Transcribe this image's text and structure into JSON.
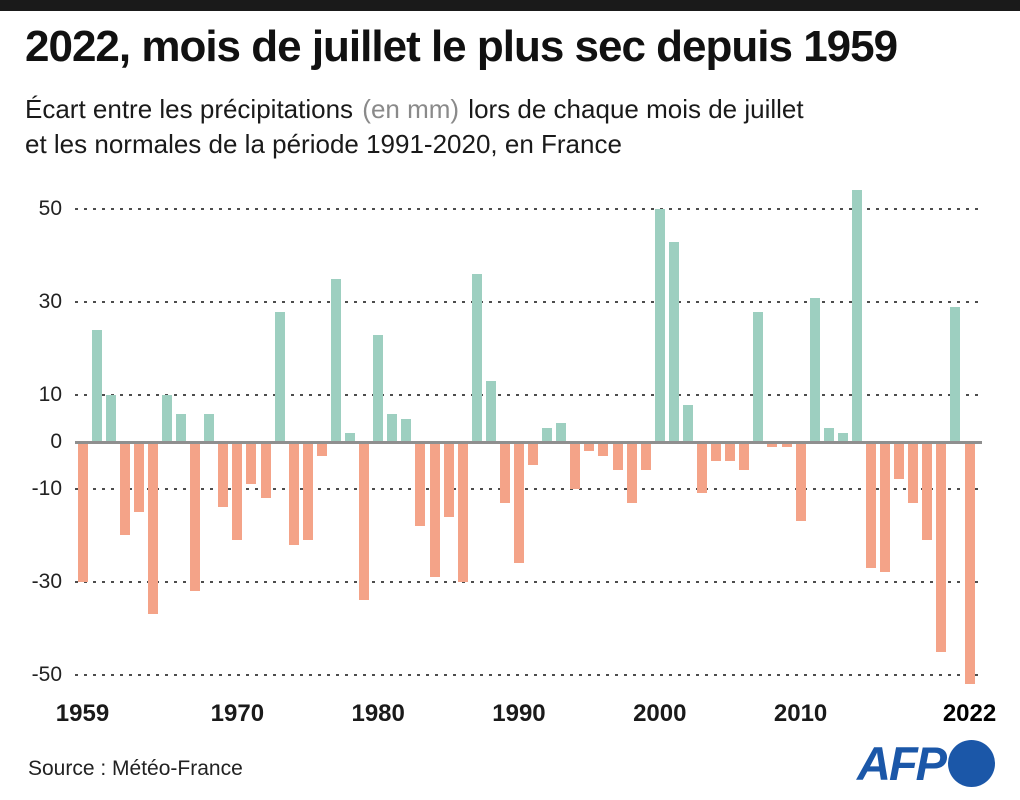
{
  "header": {
    "title": "2022, mois de juillet le plus sec depuis 1959",
    "subtitle_prefix": "Écart entre les précipitations",
    "subtitle_unit": "(en mm)",
    "subtitle_suffix": "lors de chaque mois de juillet",
    "subtitle_line2": "et les normales de la période 1991-2020, en France"
  },
  "colors": {
    "top_bar": "#1a1a1a",
    "title_text": "#111111",
    "subtitle_muted": "#8a8a8a",
    "positive_bar": "#9dcfc0",
    "negative_bar": "#f4a388",
    "grid_dots": "#4d4d4d",
    "zero_line": "#8f8f8f",
    "afp_blue": "#1b57a8"
  },
  "chart_data": {
    "type": "bar",
    "title": "2022, mois de juillet le plus sec depuis 1959",
    "xlabel": "",
    "ylabel": "",
    "unit": "mm",
    "ylim": [
      -55,
      55
    ],
    "grid": "horizontal dotted",
    "y_ticks": [
      50,
      30,
      10,
      0,
      -10,
      -30,
      -50
    ],
    "x_ticks": [
      {
        "label": "1959",
        "bold": false
      },
      {
        "label": "1970",
        "bold": false
      },
      {
        "label": "1980",
        "bold": false
      },
      {
        "label": "1990",
        "bold": false
      },
      {
        "label": "2000",
        "bold": false
      },
      {
        "label": "2010",
        "bold": false
      },
      {
        "label": "2022",
        "bold": true
      }
    ],
    "x": [
      1959,
      1960,
      1961,
      1962,
      1963,
      1964,
      1965,
      1966,
      1967,
      1968,
      1969,
      1970,
      1971,
      1972,
      1973,
      1974,
      1975,
      1976,
      1977,
      1978,
      1979,
      1980,
      1981,
      1982,
      1983,
      1984,
      1985,
      1986,
      1987,
      1988,
      1989,
      1990,
      1991,
      1992,
      1993,
      1994,
      1995,
      1996,
      1997,
      1998,
      1999,
      2000,
      2001,
      2002,
      2003,
      2004,
      2005,
      2006,
      2007,
      2008,
      2009,
      2010,
      2011,
      2012,
      2013,
      2014,
      2015,
      2016,
      2017,
      2018,
      2019,
      2020,
      2021,
      2022
    ],
    "values": [
      -30,
      24,
      10,
      -20,
      -15,
      -37,
      10,
      6,
      -32,
      6,
      -14,
      -21,
      -9,
      -12,
      28,
      -22,
      -21,
      -3,
      35,
      2,
      -34,
      23,
      6,
      5,
      -18,
      -29,
      -16,
      -30,
      36,
      13,
      -13,
      -26,
      -5,
      3,
      4,
      -10,
      -2,
      -3,
      -6,
      -13,
      -6,
      50,
      43,
      8,
      -11,
      -4,
      -4,
      -6,
      28,
      -1,
      -1,
      -17,
      31,
      3,
      2,
      54,
      -27,
      -28,
      -8,
      -13,
      -21,
      -45,
      29,
      -52
    ]
  },
  "footer": {
    "source": "Source : Météo-France",
    "agency": "AFP"
  }
}
